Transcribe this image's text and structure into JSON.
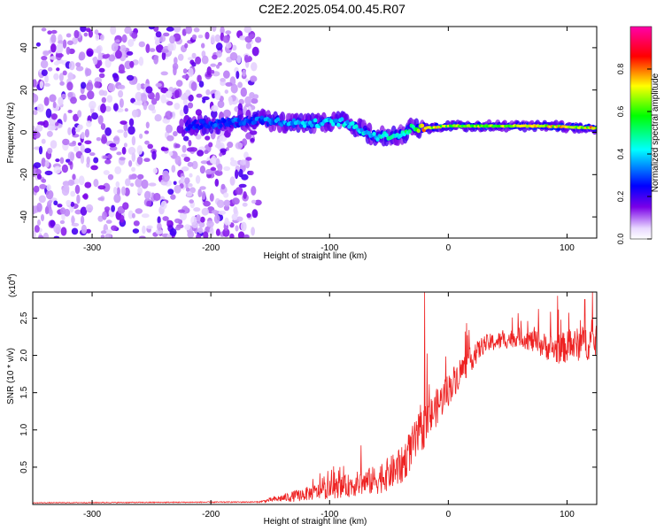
{
  "title": "C2E2.2025.054.00.45.R07",
  "chart_data": [
    {
      "type": "heatmap",
      "xlabel": "Height of straight line (km)",
      "ylabel": "Frequency (Hz)",
      "xlim": [
        -350,
        125
      ],
      "ylim": [
        -50,
        50
      ],
      "xticks": [
        -300,
        -200,
        -100,
        0,
        100
      ],
      "yticks": [
        -40,
        -20,
        0,
        20,
        40
      ],
      "colorbar": {
        "label": "Normalized spectral amplitude",
        "range": [
          0,
          1
        ],
        "ticks": [
          "0.0",
          "0.2",
          "0.4",
          "0.6",
          "0.8"
        ],
        "colors": [
          "#ffffff",
          "#e8d8ff",
          "#7a00e8",
          "#0000ff",
          "#00ffff",
          "#00ff00",
          "#ffff00",
          "#ff0000",
          "#ff00aa"
        ]
      },
      "noise_region": {
        "x": [
          -350,
          -160
        ],
        "level": 0.1
      },
      "signal_band": [
        {
          "x": -220,
          "f": 3,
          "amp": 0.3
        },
        {
          "x": -160,
          "f": 6,
          "amp": 0.35
        },
        {
          "x": -120,
          "f": 4,
          "amp": 0.4
        },
        {
          "x": -90,
          "f": 5,
          "amp": 0.45
        },
        {
          "x": -60,
          "f": -2,
          "amp": 0.45
        },
        {
          "x": -40,
          "f": -1,
          "amp": 0.5
        },
        {
          "x": -30,
          "f": 2,
          "amp": 0.6
        },
        {
          "x": -20,
          "f": 2,
          "amp": 0.85
        },
        {
          "x": 0,
          "f": 3,
          "amp": 0.7
        },
        {
          "x": 40,
          "f": 3,
          "amp": 0.7
        },
        {
          "x": 80,
          "f": 3,
          "amp": 0.75
        },
        {
          "x": 125,
          "f": 2,
          "amp": 0.8
        }
      ]
    },
    {
      "type": "line",
      "xlabel": "Height of straight line (km)",
      "ylabel": "SNR (10 * v/v)",
      "scale_label": "(x10",
      "scale_exp": "4",
      "scale_close": ")",
      "xlim": [
        -350,
        125
      ],
      "ylim": [
        0,
        28500
      ],
      "xticks": [
        -300,
        -200,
        -100,
        0,
        100
      ],
      "yticks": [
        "0.5",
        "1.0",
        "1.5",
        "2.0",
        "2.5"
      ],
      "color": "#ee2222",
      "envelope": [
        {
          "x": -350,
          "base": 200,
          "spread": 100
        },
        {
          "x": -160,
          "base": 300,
          "spread": 150
        },
        {
          "x": -130,
          "base": 800,
          "spread": 1500
        },
        {
          "x": -100,
          "base": 1500,
          "spread": 2500
        },
        {
          "x": -60,
          "base": 2500,
          "spread": 4000
        },
        {
          "x": -40,
          "base": 4000,
          "spread": 5000
        },
        {
          "x": -25,
          "base": 8000,
          "spread": 6000
        },
        {
          "x": -10,
          "base": 12000,
          "spread": 5000
        },
        {
          "x": 10,
          "base": 17000,
          "spread": 4000
        },
        {
          "x": 30,
          "base": 21000,
          "spread": 2500
        },
        {
          "x": 60,
          "base": 22000,
          "spread": 2500
        },
        {
          "x": 90,
          "base": 20000,
          "spread": 4000
        },
        {
          "x": 125,
          "base": 21000,
          "spread": 5000
        }
      ],
      "spikes": [
        {
          "x": -20,
          "y": 28500
        },
        {
          "x": 92,
          "y": 28000
        },
        {
          "x": 115,
          "y": 27500
        }
      ]
    }
  ]
}
